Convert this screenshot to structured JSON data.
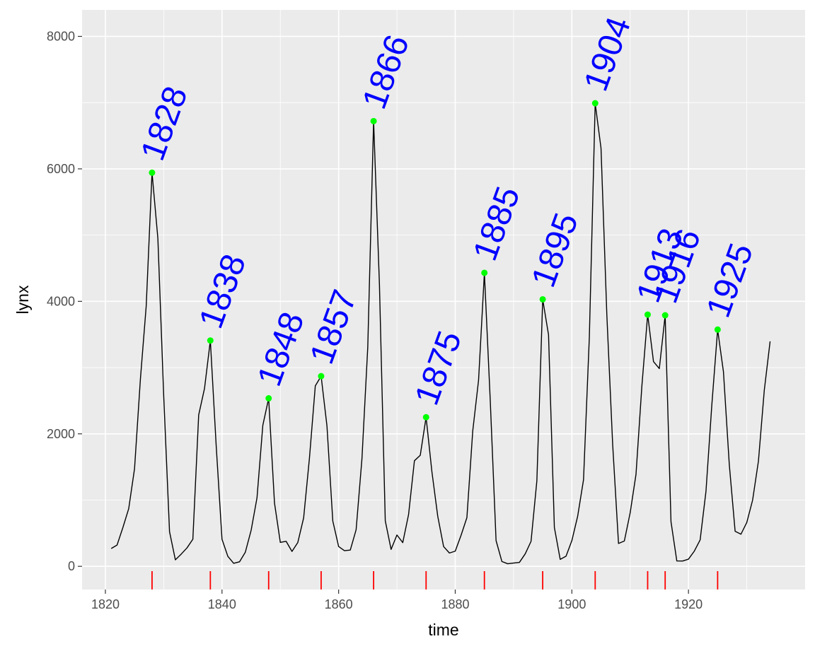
{
  "chart_data": {
    "type": "line",
    "title": "",
    "xlabel": "time",
    "ylabel": "lynx",
    "xlim": [
      1816,
      1940
    ],
    "ylim": [
      -350,
      8400
    ],
    "x_ticks": [
      1820,
      1840,
      1860,
      1880,
      1900,
      1920
    ],
    "y_ticks": [
      0,
      2000,
      4000,
      6000,
      8000
    ],
    "grid": true,
    "panel_background": "#ebebeb",
    "grid_color": "#ffffff",
    "colors": {
      "line": "#000000",
      "peak_point": "#00ff00",
      "peak_label": "#0000ff",
      "rug": "#ff0000"
    },
    "series": [
      {
        "x": [
          1821,
          1822,
          1823,
          1824,
          1825,
          1826,
          1827,
          1828,
          1829,
          1830,
          1831,
          1832,
          1833,
          1834,
          1835,
          1836,
          1837,
          1838,
          1839,
          1840,
          1841,
          1842,
          1843,
          1844,
          1845,
          1846,
          1847,
          1848,
          1849,
          1850,
          1851,
          1852,
          1853,
          1854,
          1855,
          1856,
          1857,
          1858,
          1859,
          1860,
          1861,
          1862,
          1863,
          1864,
          1865,
          1866,
          1867,
          1868,
          1869,
          1870,
          1871,
          1872,
          1873,
          1874,
          1875,
          1876,
          1877,
          1878,
          1879,
          1880,
          1881,
          1882,
          1883,
          1884,
          1885,
          1886,
          1887,
          1888,
          1889,
          1890,
          1891,
          1892,
          1893,
          1894,
          1895,
          1896,
          1897,
          1898,
          1899,
          1900,
          1901,
          1902,
          1903,
          1904,
          1905,
          1906,
          1907,
          1908,
          1909,
          1910,
          1911,
          1912,
          1913,
          1914,
          1915,
          1916,
          1917,
          1918,
          1919,
          1920,
          1921,
          1922,
          1923,
          1924,
          1925,
          1926,
          1927,
          1928,
          1929,
          1930,
          1931,
          1932,
          1933,
          1934
        ],
        "values": [
          269,
          321,
          585,
          871,
          1475,
          2821,
          3928,
          5943,
          4950,
          2577,
          523,
          98,
          184,
          279,
          409,
          2285,
          2685,
          3409,
          1824,
          409,
          151,
          45,
          68,
          213,
          546,
          1033,
          2129,
          2536,
          957,
          361,
          377,
          225,
          360,
          731,
          1638,
          2725,
          2871,
          2119,
          684,
          299,
          236,
          245,
          552,
          1623,
          3311,
          6721,
          4254,
          687,
          255,
          473,
          358,
          784,
          1594,
          1676,
          2251,
          1426,
          756,
          299,
          201,
          229,
          469,
          736,
          2042,
          2811,
          4431,
          2511,
          389,
          73,
          39,
          49,
          59,
          188,
          377,
          1292,
          4031,
          3495,
          587,
          105,
          153,
          387,
          758,
          1307,
          3465,
          6991,
          6313,
          3794,
          1836,
          345,
          382,
          808,
          1388,
          2713,
          3800,
          3091,
          2985,
          3790,
          674,
          81,
          80,
          108,
          229,
          399,
          1132,
          2432,
          3574,
          2935,
          1537,
          529,
          485,
          662,
          1000,
          1590,
          2657,
          3396
        ]
      }
    ],
    "peaks": [
      {
        "year": 1828,
        "value": 5943,
        "label": "1828"
      },
      {
        "year": 1838,
        "value": 3409,
        "label": "1838"
      },
      {
        "year": 1848,
        "value": 2536,
        "label": "1848"
      },
      {
        "year": 1857,
        "value": 2871,
        "label": "1857"
      },
      {
        "year": 1866,
        "value": 6721,
        "label": "1866"
      },
      {
        "year": 1875,
        "value": 2251,
        "label": "1875"
      },
      {
        "year": 1885,
        "value": 4431,
        "label": "1885"
      },
      {
        "year": 1895,
        "value": 4031,
        "label": "1895"
      },
      {
        "year": 1904,
        "value": 6991,
        "label": "1904"
      },
      {
        "year": 1913,
        "value": 3800,
        "label": "1913"
      },
      {
        "year": 1916,
        "value": 3790,
        "label": "1916"
      },
      {
        "year": 1925,
        "value": 3574,
        "label": "1925"
      }
    ]
  }
}
